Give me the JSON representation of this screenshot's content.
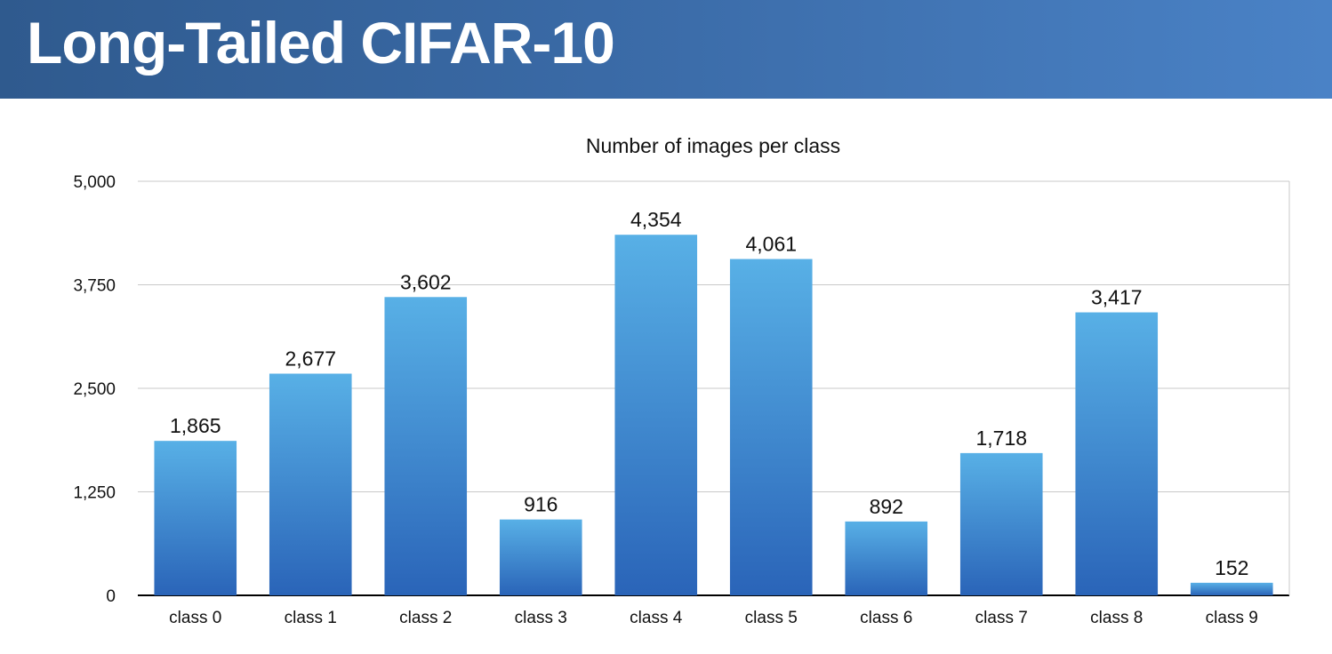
{
  "slide": {
    "title": "Long-Tailed CIFAR-10"
  },
  "colors": {
    "header_left": "#2f5a8e",
    "header_right": "#4a82c6",
    "bar_top": "#58b0e6",
    "bar_bottom": "#2a64b8",
    "gridline": "#c8c8c8",
    "axis": "#000000"
  },
  "chart_data": {
    "type": "bar",
    "title": "Number of images per class",
    "xlabel": "",
    "ylabel": "",
    "categories": [
      "class 0",
      "class 1",
      "class 2",
      "class 3",
      "class 4",
      "class 5",
      "class 6",
      "class 7",
      "class 8",
      "class 9"
    ],
    "values": [
      1865,
      2677,
      3602,
      916,
      4354,
      4061,
      892,
      1718,
      3417,
      152
    ],
    "data_labels": [
      "1,865",
      "2,677",
      "3,602",
      "916",
      "4,354",
      "4,061",
      "892",
      "1,718",
      "3,417",
      "152"
    ],
    "ylim": [
      0,
      5000
    ],
    "yticks": [
      0,
      1250,
      2500,
      3750,
      5000
    ],
    "ytick_labels": [
      "0",
      "1,250",
      "2,500",
      "3,750",
      "5,000"
    ],
    "grid": true,
    "legend": "none"
  }
}
